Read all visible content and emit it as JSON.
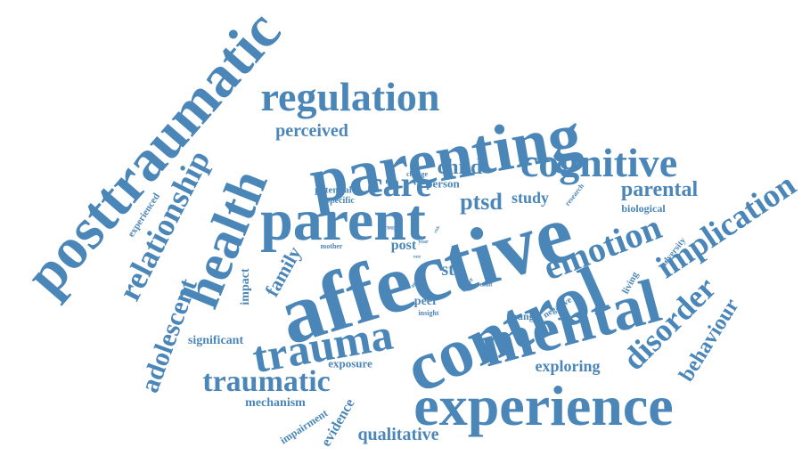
{
  "color": "#4b86b9",
  "words": {
    "affective": "affective",
    "parenting": "parenting",
    "control": "control",
    "experience": "experience",
    "posttraumatic": "posttraumatic",
    "mental": "mental",
    "parent": "parent",
    "health": "health",
    "cognitive": "cognitive",
    "regulation": "regulation",
    "trauma": "trauma",
    "relationship": "relationship",
    "emotion": "emotion",
    "implication": "implication",
    "adolescent": "adolescent",
    "traumatic": "traumatic",
    "disorder": "disorder",
    "care": "care",
    "behaviour": "behaviour",
    "parental": "parental",
    "ptsd": "ptsd",
    "child": "child",
    "family": "family",
    "qualitative": "qualitative",
    "perceived": "perceived",
    "exploring": "exploring",
    "str": "str",
    "significant": "significant",
    "mechanism": "mechanism",
    "evidence": "evidence",
    "impairment": "impairment",
    "study": "study",
    "impact": "impact",
    "exposure": "exposure",
    "person": "person",
    "post": "post",
    "peer": "peer",
    "young": "young",
    "biological": "biological",
    "experienced": "experienced",
    "potential": "potential",
    "specific": "specific",
    "adversity": "adversity",
    "living": "living",
    "negative": "negative",
    "research": "research",
    "insight": "insight",
    "mother": "mother",
    "father": "father",
    "change": "change",
    "result": "result",
    "group": "group",
    "year": "year",
    "aged": "aged",
    "rate": "rate",
    "risk": "risk"
  }
}
